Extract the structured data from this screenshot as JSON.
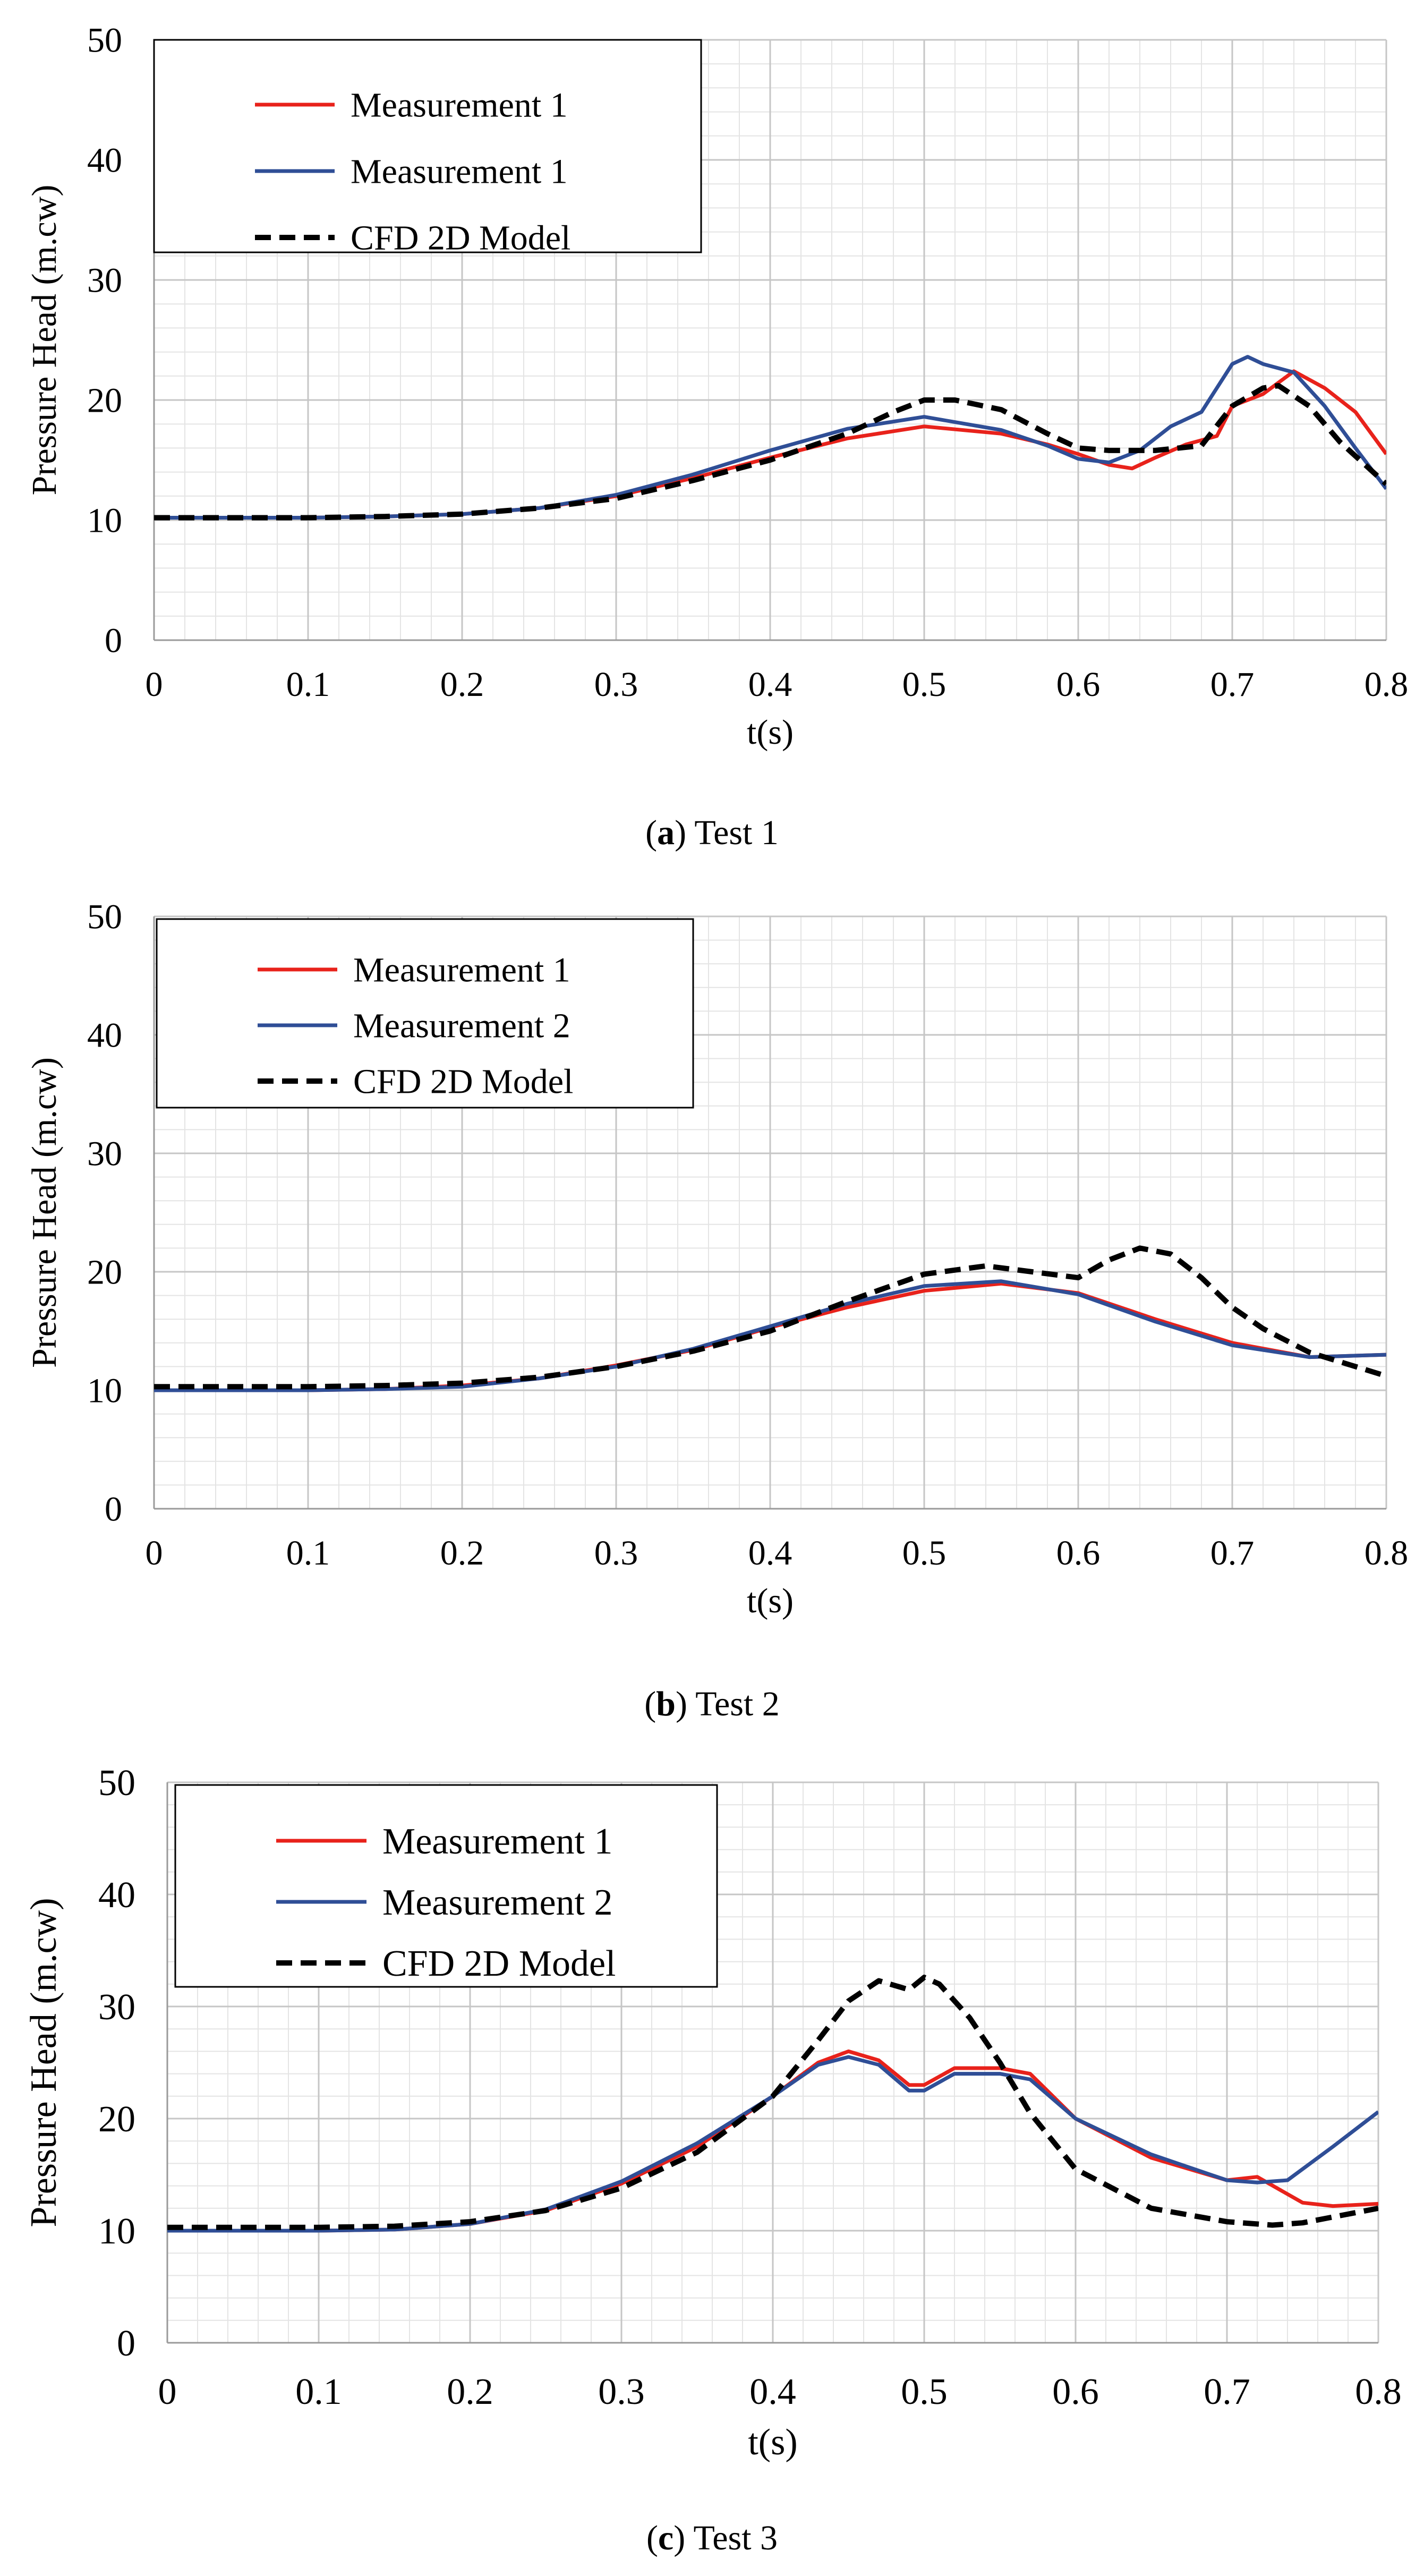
{
  "chart_data": [
    {
      "type": "line",
      "caption_letter": "a",
      "caption_text": "Test 1",
      "xlabel": "t(s)",
      "ylabel": "Pressure Head (m.cw)",
      "xlim": [
        0,
        0.8
      ],
      "ylim": [
        0,
        50
      ],
      "xticks": [
        "0",
        "0.1",
        "0.2",
        "0.3",
        "0.4",
        "0.5",
        "0.6",
        "0.7",
        "0.8"
      ],
      "yticks": [
        "0",
        "10",
        "20",
        "30",
        "40",
        "50"
      ],
      "grid": true,
      "legend_position": "top-left",
      "series": [
        {
          "name": "Measurement 1",
          "color": "#e8221b",
          "style": "solid",
          "x": [
            0,
            0.05,
            0.1,
            0.15,
            0.2,
            0.25,
            0.3,
            0.35,
            0.4,
            0.45,
            0.5,
            0.55,
            0.58,
            0.6,
            0.62,
            0.635,
            0.65,
            0.67,
            0.69,
            0.7,
            0.72,
            0.74,
            0.76,
            0.78,
            0.8
          ],
          "y": [
            10.2,
            10.2,
            10.2,
            10.3,
            10.5,
            11.0,
            12.0,
            13.5,
            15.2,
            16.8,
            17.8,
            17.2,
            16.3,
            15.5,
            14.6,
            14.3,
            15.2,
            16.3,
            17.0,
            19.5,
            20.5,
            22.4,
            21.0,
            19.0,
            15.5
          ]
        },
        {
          "name": "Measurement 1",
          "color": "#2f4e96",
          "style": "solid",
          "x": [
            0,
            0.05,
            0.1,
            0.15,
            0.2,
            0.25,
            0.3,
            0.35,
            0.4,
            0.45,
            0.5,
            0.55,
            0.58,
            0.6,
            0.62,
            0.64,
            0.66,
            0.68,
            0.69,
            0.7,
            0.71,
            0.72,
            0.74,
            0.76,
            0.78,
            0.8
          ],
          "y": [
            10.2,
            10.2,
            10.2,
            10.3,
            10.5,
            11.0,
            12.1,
            13.8,
            15.8,
            17.6,
            18.6,
            17.5,
            16.2,
            15.1,
            14.8,
            15.8,
            17.8,
            19.0,
            21.0,
            23.0,
            23.6,
            23.0,
            22.3,
            19.5,
            16.0,
            12.6
          ]
        },
        {
          "name": "CFD 2D Model",
          "color": "#000000",
          "style": "dashed",
          "x": [
            0,
            0.05,
            0.1,
            0.15,
            0.2,
            0.25,
            0.3,
            0.35,
            0.4,
            0.45,
            0.48,
            0.5,
            0.52,
            0.55,
            0.58,
            0.6,
            0.62,
            0.65,
            0.68,
            0.7,
            0.72,
            0.73,
            0.75,
            0.77,
            0.8
          ],
          "y": [
            10.2,
            10.2,
            10.2,
            10.3,
            10.5,
            11.0,
            11.8,
            13.3,
            15.0,
            17.2,
            19.0,
            20.0,
            20.0,
            19.2,
            17.2,
            16.0,
            15.8,
            15.8,
            16.2,
            19.5,
            21.0,
            21.2,
            19.5,
            16.5,
            13.0
          ]
        }
      ]
    },
    {
      "type": "line",
      "caption_letter": "b",
      "caption_text": "Test 2",
      "xlabel": "t(s)",
      "ylabel": "Pressure Head (m.cw)",
      "xlim": [
        0,
        0.8
      ],
      "ylim": [
        0,
        50
      ],
      "xticks": [
        "0",
        "0.1",
        "0.2",
        "0.3",
        "0.4",
        "0.5",
        "0.6",
        "0.7",
        "0.8"
      ],
      "yticks": [
        "0",
        "10",
        "20",
        "30",
        "40",
        "50"
      ],
      "grid": true,
      "legend_position": "top-left",
      "series": [
        {
          "name": "Measurement 1",
          "color": "#e8221b",
          "style": "solid",
          "x": [
            0,
            0.05,
            0.1,
            0.15,
            0.2,
            0.25,
            0.3,
            0.35,
            0.4,
            0.45,
            0.5,
            0.55,
            0.6,
            0.65,
            0.7,
            0.75,
            0.8
          ],
          "y": [
            10.0,
            10.0,
            10.0,
            10.1,
            10.4,
            11.0,
            12.1,
            13.4,
            15.3,
            17.0,
            18.4,
            19.0,
            18.2,
            16.0,
            14.0,
            12.8,
            13.0
          ]
        },
        {
          "name": "Measurement 2",
          "color": "#2f4e96",
          "style": "solid",
          "x": [
            0,
            0.05,
            0.1,
            0.15,
            0.2,
            0.25,
            0.3,
            0.35,
            0.4,
            0.45,
            0.5,
            0.55,
            0.6,
            0.65,
            0.7,
            0.75,
            0.8
          ],
          "y": [
            10.0,
            10.0,
            10.0,
            10.1,
            10.3,
            11.0,
            12.0,
            13.5,
            15.4,
            17.3,
            18.8,
            19.2,
            18.1,
            15.8,
            13.8,
            12.8,
            13.0
          ]
        },
        {
          "name": "CFD 2D Model",
          "color": "#000000",
          "style": "dashed",
          "x": [
            0,
            0.05,
            0.1,
            0.15,
            0.2,
            0.25,
            0.3,
            0.35,
            0.4,
            0.45,
            0.5,
            0.54,
            0.57,
            0.6,
            0.62,
            0.64,
            0.66,
            0.68,
            0.7,
            0.72,
            0.75,
            0.8
          ],
          "y": [
            10.3,
            10.3,
            10.3,
            10.4,
            10.6,
            11.1,
            12.0,
            13.3,
            15.0,
            17.5,
            19.8,
            20.5,
            20.0,
            19.5,
            21.0,
            22.0,
            21.5,
            19.5,
            17.0,
            15.2,
            13.2,
            11.2
          ]
        }
      ]
    },
    {
      "type": "line",
      "caption_letter": "c",
      "caption_text": "Test 3",
      "xlabel": "t(s)",
      "ylabel": "Pressure Head (m.cw)",
      "xlim": [
        0,
        0.8
      ],
      "ylim": [
        0,
        50
      ],
      "xticks": [
        "0",
        "0.1",
        "0.2",
        "0.3",
        "0.4",
        "0.5",
        "0.6",
        "0.7",
        "0.8"
      ],
      "yticks": [
        "0",
        "10",
        "20",
        "30",
        "40",
        "50"
      ],
      "grid": true,
      "legend_position": "top-left",
      "series": [
        {
          "name": "Measurement 1",
          "color": "#e8221b",
          "style": "solid",
          "x": [
            0,
            0.05,
            0.1,
            0.15,
            0.2,
            0.25,
            0.3,
            0.35,
            0.4,
            0.43,
            0.45,
            0.47,
            0.49,
            0.5,
            0.52,
            0.55,
            0.57,
            0.6,
            0.65,
            0.7,
            0.72,
            0.75,
            0.77,
            0.8
          ],
          "y": [
            10.0,
            10.0,
            10.0,
            10.1,
            10.6,
            11.8,
            14.2,
            17.5,
            22.0,
            25.0,
            26.0,
            25.2,
            23.0,
            23.0,
            24.5,
            24.5,
            24.0,
            20.0,
            16.5,
            14.5,
            14.8,
            12.5,
            12.2,
            12.4
          ]
        },
        {
          "name": "Measurement 2",
          "color": "#2f4e96",
          "style": "solid",
          "x": [
            0,
            0.05,
            0.1,
            0.15,
            0.2,
            0.25,
            0.3,
            0.35,
            0.4,
            0.43,
            0.45,
            0.47,
            0.49,
            0.5,
            0.52,
            0.55,
            0.57,
            0.6,
            0.65,
            0.7,
            0.72,
            0.74,
            0.77,
            0.8
          ],
          "y": [
            10.0,
            10.0,
            10.0,
            10.1,
            10.6,
            11.9,
            14.4,
            17.8,
            22.0,
            24.8,
            25.5,
            24.8,
            22.5,
            22.5,
            24.0,
            24.0,
            23.5,
            20.0,
            16.8,
            14.5,
            14.3,
            14.5,
            17.5,
            20.6
          ]
        },
        {
          "name": "CFD 2D Model",
          "color": "#000000",
          "style": "dashed",
          "x": [
            0,
            0.05,
            0.1,
            0.15,
            0.2,
            0.25,
            0.3,
            0.35,
            0.4,
            0.43,
            0.45,
            0.47,
            0.49,
            0.5,
            0.51,
            0.53,
            0.55,
            0.57,
            0.6,
            0.65,
            0.7,
            0.73,
            0.75,
            0.8
          ],
          "y": [
            10.3,
            10.3,
            10.3,
            10.4,
            10.8,
            11.8,
            13.8,
            17.0,
            22.0,
            27.0,
            30.5,
            32.3,
            31.5,
            32.6,
            32.0,
            29.0,
            25.0,
            20.5,
            15.5,
            12.0,
            10.8,
            10.5,
            10.7,
            12.0
          ]
        }
      ]
    }
  ]
}
